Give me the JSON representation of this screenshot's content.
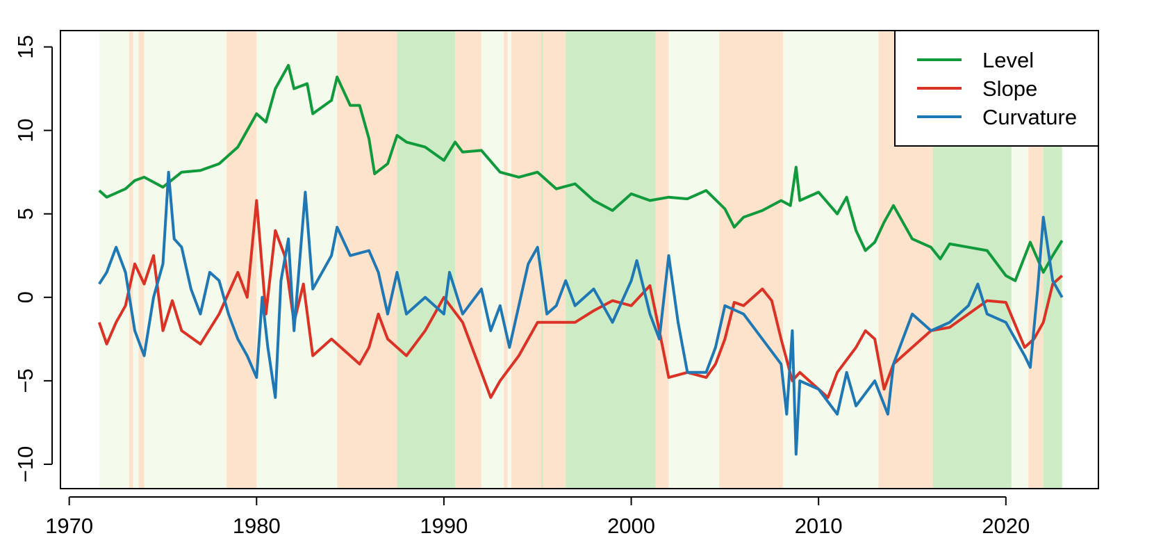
{
  "chart_data": {
    "type": "line",
    "xlim": [
      1969.53,
      2024.94
    ],
    "ylim": [
      -11.46,
      15.98
    ],
    "xticks": [
      1970,
      1980,
      1990,
      2000,
      2010,
      2020
    ],
    "yticks": [
      {
        "value": -10,
        "label": "−10"
      },
      {
        "value": -5,
        "label": "−5"
      },
      0,
      5,
      10,
      15
    ],
    "legend": "topright",
    "bands": [
      {
        "start": 1971.6,
        "end": 1973.2,
        "color": "#f4faec"
      },
      {
        "start": 1973.2,
        "end": 1973.4,
        "color": "#fde3cc"
      },
      {
        "start": 1973.4,
        "end": 1973.7,
        "color": "#f4faec"
      },
      {
        "start": 1973.7,
        "end": 1974.0,
        "color": "#fde3cc"
      },
      {
        "start": 1974.0,
        "end": 1978.4,
        "color": "#f4faec"
      },
      {
        "start": 1978.4,
        "end": 1980.0,
        "color": "#fde3cc"
      },
      {
        "start": 1980.0,
        "end": 1984.3,
        "color": "#f4faec"
      },
      {
        "start": 1984.3,
        "end": 1987.5,
        "color": "#fde3cc"
      },
      {
        "start": 1987.5,
        "end": 1990.6,
        "color": "#cdebc5"
      },
      {
        "start": 1990.6,
        "end": 1992.0,
        "color": "#fde3cc"
      },
      {
        "start": 1992.0,
        "end": 1993.2,
        "color": "#f4faec"
      },
      {
        "start": 1993.2,
        "end": 1993.4,
        "color": "#fde3cc"
      },
      {
        "start": 1993.4,
        "end": 1993.6,
        "color": "#f4faec"
      },
      {
        "start": 1993.6,
        "end": 1995.2,
        "color": "#fde3cc"
      },
      {
        "start": 1995.2,
        "end": 1995.3,
        "color": "#cdebc5"
      },
      {
        "start": 1995.3,
        "end": 1996.5,
        "color": "#fde3cc"
      },
      {
        "start": 1996.5,
        "end": 2001.3,
        "color": "#cdebc5"
      },
      {
        "start": 2001.3,
        "end": 2002.0,
        "color": "#fde3cc"
      },
      {
        "start": 2002.0,
        "end": 2004.7,
        "color": "#f4faec"
      },
      {
        "start": 2004.7,
        "end": 2008.1,
        "color": "#fde3cc"
      },
      {
        "start": 2008.1,
        "end": 2013.2,
        "color": "#f4faec"
      },
      {
        "start": 2013.2,
        "end": 2016.1,
        "color": "#fde3cc"
      },
      {
        "start": 2016.1,
        "end": 2020.3,
        "color": "#cdebc5"
      },
      {
        "start": 2020.3,
        "end": 2021.2,
        "color": "#f4faec"
      },
      {
        "start": 2021.2,
        "end": 2022.0,
        "color": "#fde3cc"
      },
      {
        "start": 2022.0,
        "end": 2023.0,
        "color": "#cdebc5"
      }
    ],
    "series": [
      {
        "name": "Level",
        "color": "#119a3c",
        "x": [
          1971.6,
          1972,
          1973,
          1973.5,
          1974,
          1975,
          1976,
          1977,
          1978,
          1979,
          1980,
          1980.5,
          1981,
          1981.7,
          1982,
          1982.7,
          1983,
          1984,
          1984.3,
          1985,
          1985.5,
          1986,
          1986.3,
          1987,
          1987.5,
          1988,
          1989,
          1990,
          1990.6,
          1991,
          1992,
          1993,
          1994,
          1995,
          1996,
          1997,
          1998,
          1999,
          2000,
          2001,
          2002,
          2003,
          2004,
          2005,
          2005.5,
          2006,
          2007,
          2008,
          2008.5,
          2008.8,
          2009,
          2010,
          2011,
          2011.5,
          2012,
          2012.5,
          2013,
          2013.5,
          2014,
          2015,
          2016,
          2016.5,
          2017,
          2018,
          2019,
          2020,
          2020.5,
          2021.3,
          2022,
          2022.5,
          2023
        ],
        "values": [
          6.4,
          6.0,
          6.5,
          7.0,
          7.2,
          6.6,
          7.5,
          7.6,
          8.0,
          9.0,
          11.0,
          10.5,
          12.5,
          13.9,
          12.5,
          12.8,
          11.0,
          11.8,
          13.2,
          11.5,
          11.5,
          9.5,
          7.4,
          8.0,
          9.7,
          9.3,
          9.0,
          8.2,
          9.3,
          8.7,
          8.8,
          7.5,
          7.2,
          7.5,
          6.5,
          6.8,
          5.8,
          5.2,
          6.2,
          5.8,
          6.0,
          5.9,
          6.4,
          5.3,
          4.2,
          4.8,
          5.2,
          5.8,
          5.5,
          7.8,
          5.8,
          6.3,
          5.0,
          6.0,
          4.0,
          2.8,
          3.3,
          4.5,
          5.5,
          3.5,
          3.0,
          2.3,
          3.2,
          3.0,
          2.8,
          1.3,
          1.0,
          3.3,
          1.5,
          2.5,
          3.4
        ]
      },
      {
        "name": "Slope",
        "color": "#db3226",
        "x": [
          1971.6,
          1972,
          1972.5,
          1973,
          1973.5,
          1974,
          1974.5,
          1975,
          1975.5,
          1976,
          1977,
          1978,
          1979,
          1979.5,
          1980,
          1980.5,
          1981,
          1981.5,
          1982,
          1982.5,
          1983,
          1984,
          1985,
          1985.5,
          1986,
          1986.5,
          1987,
          1988,
          1989,
          1990,
          1991,
          1992,
          1992.5,
          1993,
          1994,
          1995,
          1996,
          1997,
          1998,
          1999,
          2000,
          2001,
          2001.5,
          2002,
          2003,
          2004,
          2004.5,
          2005,
          2005.5,
          2006,
          2007,
          2007.5,
          2008,
          2008.6,
          2009,
          2010,
          2010.5,
          2011,
          2012,
          2012.5,
          2013,
          2013.5,
          2014,
          2015,
          2016,
          2017,
          2018,
          2019,
          2020,
          2021,
          2021.5,
          2022,
          2022.5,
          2023
        ],
        "values": [
          -1.5,
          -2.8,
          -1.5,
          -0.5,
          2.0,
          0.8,
          2.5,
          -2.0,
          -0.2,
          -2.0,
          -2.8,
          -1.0,
          1.5,
          0.0,
          5.8,
          -1.0,
          4.0,
          2.5,
          -1.5,
          0.8,
          -3.5,
          -2.5,
          -3.5,
          -4.0,
          -3.0,
          -1.0,
          -2.5,
          -3.5,
          -2.0,
          0.0,
          -1.5,
          -4.5,
          -6.0,
          -5.0,
          -3.5,
          -1.5,
          -1.5,
          -1.5,
          -0.8,
          -0.2,
          -0.5,
          0.7,
          -2.0,
          -4.8,
          -4.5,
          -4.8,
          -4.0,
          -2.5,
          -0.3,
          -0.5,
          0.5,
          -0.2,
          -2.5,
          -5.0,
          -4.5,
          -5.5,
          -6.0,
          -4.5,
          -3.0,
          -2.0,
          -2.5,
          -5.5,
          -4.0,
          -3.0,
          -2.0,
          -1.8,
          -1.0,
          -0.2,
          -0.3,
          -3.0,
          -2.5,
          -1.5,
          0.8,
          1.3
        ]
      },
      {
        "name": "Curvature",
        "color": "#1f78b4",
        "x": [
          1971.6,
          1972,
          1972.5,
          1973,
          1973.5,
          1974,
          1974.5,
          1975,
          1975.3,
          1975.6,
          1976,
          1976.5,
          1977,
          1977.5,
          1978,
          1978.5,
          1979,
          1979.5,
          1980,
          1980.3,
          1980.6,
          1981,
          1981.3,
          1981.7,
          1982,
          1982.6,
          1983,
          1984,
          1984.3,
          1985,
          1986,
          1986.5,
          1987,
          1987.5,
          1988,
          1989,
          1990,
          1990.3,
          1991,
          1992,
          1992.5,
          1993,
          1993.5,
          1994,
          1994.5,
          1995,
          1995.5,
          1996,
          1996.5,
          1997,
          1998,
          1999,
          2000,
          2000.3,
          2001,
          2001.5,
          2002,
          2002.5,
          2003,
          2004,
          2004.5,
          2005,
          2006,
          2007,
          2008,
          2008.3,
          2008.6,
          2008.8,
          2009,
          2010,
          2011,
          2011.5,
          2012,
          2013,
          2013.7,
          2014,
          2015,
          2016,
          2017,
          2018,
          2018.5,
          2019,
          2020,
          2021,
          2021.3,
          2021.7,
          2022,
          2022.5,
          2023
        ],
        "values": [
          0.8,
          1.5,
          3.0,
          1.5,
          -2.0,
          -3.5,
          0.0,
          2.0,
          7.5,
          3.5,
          3.0,
          0.5,
          -1.0,
          1.5,
          1.0,
          -1.0,
          -2.5,
          -3.5,
          -4.8,
          0.0,
          -3.0,
          -6.0,
          1.0,
          3.5,
          -2.0,
          6.3,
          0.5,
          2.5,
          4.2,
          2.5,
          2.8,
          1.5,
          -1.0,
          1.5,
          -1.0,
          0.0,
          -1.0,
          1.5,
          -1.0,
          0.5,
          -2.0,
          -0.5,
          -3.0,
          -0.5,
          2.0,
          3.0,
          -1.0,
          -0.5,
          1.0,
          -0.5,
          0.5,
          -1.5,
          1.0,
          2.2,
          -1.0,
          -2.5,
          2.5,
          -1.5,
          -4.5,
          -4.5,
          -3.0,
          -0.5,
          -1.0,
          -2.5,
          -4.0,
          -7.0,
          -2.0,
          -9.4,
          -5.0,
          -5.5,
          -7.0,
          -4.5,
          -6.5,
          -5.0,
          -7.0,
          -4.0,
          -1.0,
          -2.0,
          -1.5,
          -0.5,
          0.8,
          -1.0,
          -1.5,
          -3.5,
          -4.2,
          0.5,
          4.8,
          1.0,
          0.0
        ]
      }
    ]
  }
}
